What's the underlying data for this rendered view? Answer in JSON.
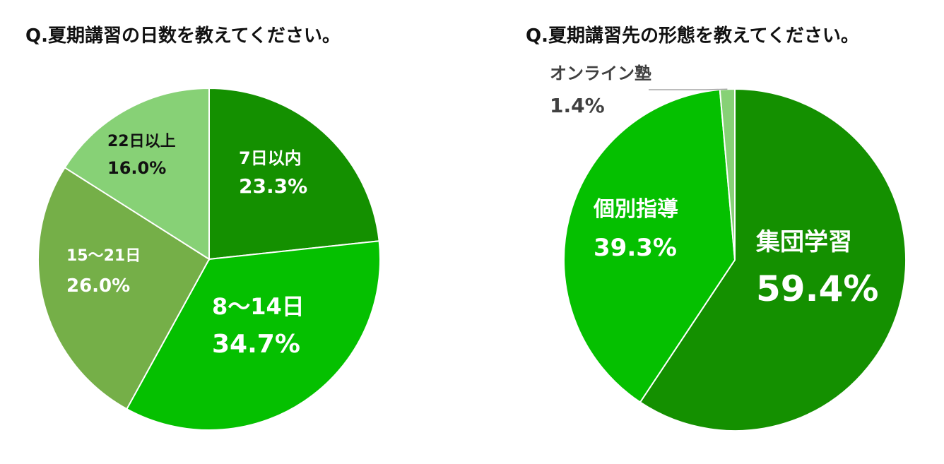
{
  "chart_data": [
    {
      "type": "pie",
      "title": "Q.夏期講習の日数を教えてください。",
      "slices": [
        {
          "label": "7日以内",
          "value": 23.3,
          "display": "23.3%",
          "color": "#149000"
        },
        {
          "label": "8〜14日",
          "value": 34.7,
          "display": "34.7%",
          "color": "#05C000"
        },
        {
          "label": "15〜21日",
          "value": 26.0,
          "display": "26.0%",
          "color": "#75AF48"
        },
        {
          "label": "22日以上",
          "value": 16.0,
          "display": "16.0%",
          "color": "#87D176"
        }
      ]
    },
    {
      "type": "pie",
      "title": "Q.夏期講習先の形態を教えてください。",
      "slices": [
        {
          "label": "集団学習",
          "value": 59.4,
          "display": "59.4%",
          "color": "#149000"
        },
        {
          "label": "個別指導",
          "value": 39.3,
          "display": "39.3%",
          "color": "#05C000"
        },
        {
          "label": "オンライン塾",
          "value": 1.4,
          "display": "1.4%",
          "color": "#87D176"
        }
      ]
    }
  ]
}
